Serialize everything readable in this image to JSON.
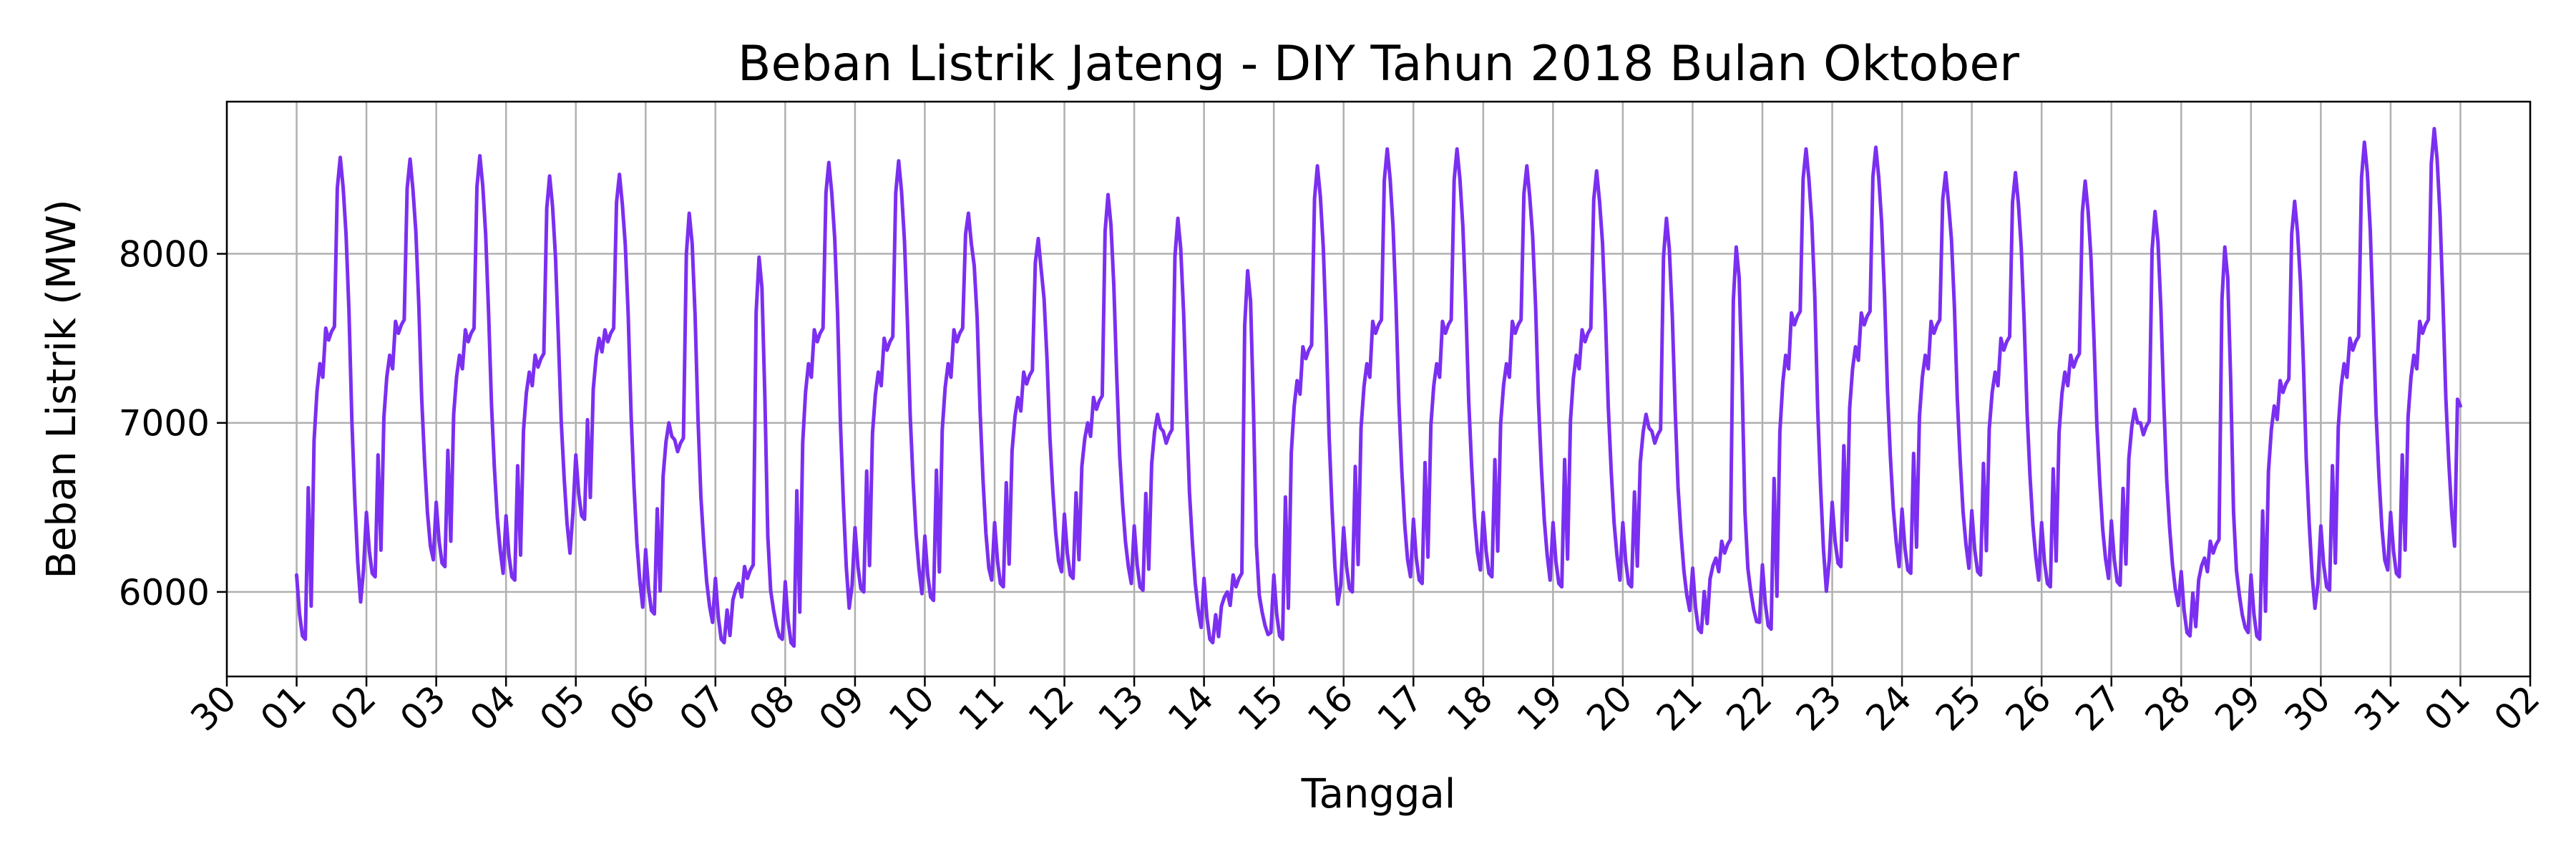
{
  "chart_data": {
    "type": "line",
    "title": "Beban Listrik Jateng - DIY Tahun 2018 Bulan Oktober",
    "xlabel": "Tanggal",
    "ylabel": "Beban Listrik (MW)",
    "grid": true,
    "xlim": [
      "2018-09-30",
      "2018-11-02"
    ],
    "ylim": [
      5500,
      8900
    ],
    "x_ticks": [
      "30",
      "01",
      "02",
      "03",
      "04",
      "05",
      "06",
      "07",
      "08",
      "09",
      "10",
      "11",
      "12",
      "13",
      "14",
      "15",
      "16",
      "17",
      "18",
      "19",
      "20",
      "21",
      "22",
      "23",
      "24",
      "25",
      "26",
      "27",
      "28",
      "29",
      "30",
      "31",
      "01",
      "02"
    ],
    "y_ticks": [
      6000,
      7000,
      8000
    ],
    "line_color": "#7b2ff0",
    "series": [
      {
        "x_start": "2018-10-01T00:00",
        "x_step": "1 hour",
        "x_end": "2018-11-01T00:00",
        "daily_profiles": [
          {
            "date": "2018-10-01",
            "min": 5720,
            "morning": 7350,
            "day": 7560,
            "peak": 8570,
            "end": 6090
          },
          {
            "date": "2018-10-02",
            "min": 6090,
            "morning": 7400,
            "day": 7600,
            "peak": 8560,
            "end": 6150
          },
          {
            "date": "2018-10-03",
            "min": 6150,
            "morning": 7400,
            "day": 7550,
            "peak": 8580,
            "end": 6070
          },
          {
            "date": "2018-10-04",
            "min": 6070,
            "morning": 7300,
            "day": 7400,
            "peak": 8460,
            "end": 6430
          },
          {
            "date": "2018-10-05",
            "min": 6430,
            "morning": 7500,
            "day": 7550,
            "peak": 8470,
            "end": 5870
          },
          {
            "date": "2018-10-06",
            "min": 5870,
            "morning": 7000,
            "day": 6900,
            "peak": 8240,
            "end": 5780
          },
          {
            "date": "2018-10-07",
            "min": 5700,
            "morning": 6050,
            "day": 6150,
            "peak": 7980,
            "end": 5680
          },
          {
            "date": "2018-10-08",
            "min": 5680,
            "morning": 7350,
            "day": 7550,
            "peak": 8540,
            "end": 6000
          },
          {
            "date": "2018-10-09",
            "min": 6000,
            "morning": 7300,
            "day": 7500,
            "peak": 8550,
            "end": 5950
          },
          {
            "date": "2018-10-10",
            "min": 5950,
            "morning": 7350,
            "day": 7550,
            "peak": 8240,
            "end": 6030
          },
          {
            "date": "2018-10-11",
            "min": 6030,
            "morning": 7150,
            "day": 7300,
            "peak": 8090,
            "end": 6080
          },
          {
            "date": "2018-10-12",
            "min": 6080,
            "morning": 7000,
            "day": 7150,
            "peak": 8350,
            "end": 6010
          },
          {
            "date": "2018-10-13",
            "min": 6010,
            "morning": 7050,
            "day": 6950,
            "peak": 8210,
            "end": 5750
          },
          {
            "date": "2018-10-14",
            "min": 5700,
            "morning": 6000,
            "day": 6100,
            "peak": 7900,
            "end": 5720
          },
          {
            "date": "2018-10-15",
            "min": 5720,
            "morning": 7250,
            "day": 7450,
            "peak": 8520,
            "end": 6000
          },
          {
            "date": "2018-10-16",
            "min": 6000,
            "morning": 7350,
            "day": 7600,
            "peak": 8620,
            "end": 6050
          },
          {
            "date": "2018-10-17",
            "min": 6050,
            "morning": 7350,
            "day": 7600,
            "peak": 8620,
            "end": 6090
          },
          {
            "date": "2018-10-18",
            "min": 6090,
            "morning": 7350,
            "day": 7600,
            "peak": 8520,
            "end": 6030
          },
          {
            "date": "2018-10-19",
            "min": 6030,
            "morning": 7400,
            "day": 7550,
            "peak": 8490,
            "end": 6030
          },
          {
            "date": "2018-10-20",
            "min": 6030,
            "morning": 7050,
            "day": 6950,
            "peak": 8210,
            "end": 5850
          },
          {
            "date": "2018-10-21",
            "min": 5760,
            "morning": 6200,
            "day": 6300,
            "peak": 8040,
            "end": 5780
          },
          {
            "date": "2018-10-22",
            "min": 5780,
            "morning": 7400,
            "day": 7650,
            "peak": 8620,
            "end": 6150
          },
          {
            "date": "2018-10-23",
            "min": 6150,
            "morning": 7450,
            "day": 7650,
            "peak": 8630,
            "end": 6110
          },
          {
            "date": "2018-10-24",
            "min": 6110,
            "morning": 7400,
            "day": 7600,
            "peak": 8480,
            "end": 6100
          },
          {
            "date": "2018-10-25",
            "min": 6100,
            "morning": 7300,
            "day": 7500,
            "peak": 8480,
            "end": 6030
          },
          {
            "date": "2018-10-26",
            "min": 6030,
            "morning": 7300,
            "day": 7400,
            "peak": 8430,
            "end": 6040
          },
          {
            "date": "2018-10-27",
            "min": 6040,
            "morning": 7080,
            "day": 7000,
            "peak": 8250,
            "end": 5880
          },
          {
            "date": "2018-10-28",
            "min": 5740,
            "morning": 6200,
            "day": 6300,
            "peak": 8040,
            "end": 5720
          },
          {
            "date": "2018-10-29",
            "min": 5720,
            "morning": 7100,
            "day": 7250,
            "peak": 8310,
            "end": 6010
          },
          {
            "date": "2018-10-30",
            "min": 6010,
            "morning": 7350,
            "day": 7500,
            "peak": 8660,
            "end": 6090
          },
          {
            "date": "2018-10-31",
            "min": 6090,
            "morning": 7400,
            "day": 7600,
            "peak": 8740,
            "end": 7100
          }
        ]
      }
    ]
  }
}
